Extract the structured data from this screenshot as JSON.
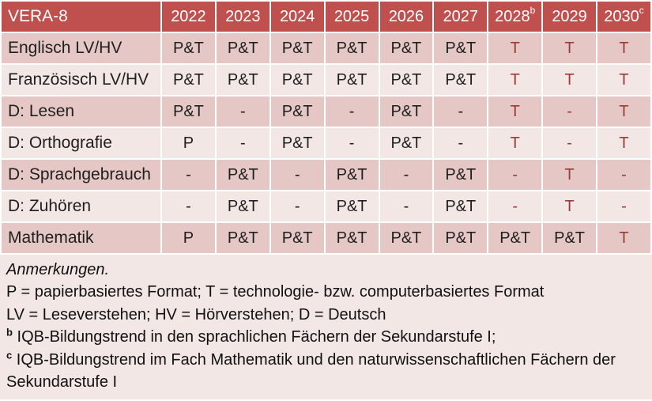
{
  "colors": {
    "header_bg": "#c0504d",
    "header_text": "#ffffff",
    "band_dark": "#e5c8c5",
    "band_light": "#f3e7e5",
    "notes_bg": "#f3e7e5",
    "cell_text": "#1f1f1f",
    "red_text": "#9c3a37"
  },
  "table": {
    "header": {
      "label": "VERA-8",
      "years": [
        {
          "text": "2022",
          "sup": ""
        },
        {
          "text": "2023",
          "sup": ""
        },
        {
          "text": "2024",
          "sup": ""
        },
        {
          "text": "2025",
          "sup": ""
        },
        {
          "text": "2026",
          "sup": ""
        },
        {
          "text": "2027",
          "sup": ""
        },
        {
          "text": "2028",
          "sup": "b"
        },
        {
          "text": "2029",
          "sup": ""
        },
        {
          "text": "2030",
          "sup": "c"
        }
      ]
    },
    "rows": [
      {
        "label": "Englisch LV/HV",
        "cells": [
          {
            "t": "P&T",
            "red": false
          },
          {
            "t": "P&T",
            "red": false
          },
          {
            "t": "P&T",
            "red": false
          },
          {
            "t": "P&T",
            "red": false
          },
          {
            "t": "P&T",
            "red": false
          },
          {
            "t": "P&T",
            "red": false
          },
          {
            "t": "T",
            "red": true
          },
          {
            "t": "T",
            "red": true
          },
          {
            "t": "T",
            "red": true
          }
        ]
      },
      {
        "label": "Französisch LV/HV",
        "cells": [
          {
            "t": "P&T",
            "red": false
          },
          {
            "t": "P&T",
            "red": false
          },
          {
            "t": "P&T",
            "red": false
          },
          {
            "t": "P&T",
            "red": false
          },
          {
            "t": "P&T",
            "red": false
          },
          {
            "t": "P&T",
            "red": false
          },
          {
            "t": "T",
            "red": true
          },
          {
            "t": "T",
            "red": true
          },
          {
            "t": "T",
            "red": true
          }
        ]
      },
      {
        "label": "D: Lesen",
        "cells": [
          {
            "t": "P&T",
            "red": false
          },
          {
            "t": "-",
            "red": false
          },
          {
            "t": "P&T",
            "red": false
          },
          {
            "t": "-",
            "red": false
          },
          {
            "t": "P&T",
            "red": false
          },
          {
            "t": "-",
            "red": false
          },
          {
            "t": "T",
            "red": true
          },
          {
            "t": "-",
            "red": true
          },
          {
            "t": "T",
            "red": true
          }
        ]
      },
      {
        "label": "D: Orthografie",
        "cells": [
          {
            "t": "P",
            "red": false
          },
          {
            "t": "-",
            "red": false
          },
          {
            "t": "P&T",
            "red": false
          },
          {
            "t": "-",
            "red": false
          },
          {
            "t": "P&T",
            "red": false
          },
          {
            "t": "-",
            "red": false
          },
          {
            "t": "T",
            "red": true
          },
          {
            "t": "-",
            "red": true
          },
          {
            "t": "T",
            "red": true
          }
        ]
      },
      {
        "label": "D: Sprachgebrauch",
        "cells": [
          {
            "t": "-",
            "red": false
          },
          {
            "t": "P&T",
            "red": false
          },
          {
            "t": "-",
            "red": false
          },
          {
            "t": "P&T",
            "red": false
          },
          {
            "t": "-",
            "red": false
          },
          {
            "t": "P&T",
            "red": false
          },
          {
            "t": "-",
            "red": true
          },
          {
            "t": "T",
            "red": true
          },
          {
            "t": "-",
            "red": true
          }
        ]
      },
      {
        "label": "D: Zuhören",
        "cells": [
          {
            "t": "-",
            "red": false
          },
          {
            "t": "P&T",
            "red": false
          },
          {
            "t": "-",
            "red": false
          },
          {
            "t": "P&T",
            "red": false
          },
          {
            "t": "-",
            "red": false
          },
          {
            "t": "P&T",
            "red": false
          },
          {
            "t": "-",
            "red": true
          },
          {
            "t": "T",
            "red": true
          },
          {
            "t": "-",
            "red": true
          }
        ]
      },
      {
        "label": "Mathematik",
        "cells": [
          {
            "t": "P",
            "red": false
          },
          {
            "t": "P&T",
            "red": false
          },
          {
            "t": "P&T",
            "red": false
          },
          {
            "t": "P&T",
            "red": false
          },
          {
            "t": "P&T",
            "red": false
          },
          {
            "t": "P&T",
            "red": false
          },
          {
            "t": "P&T",
            "red": false
          },
          {
            "t": "P&T",
            "red": false
          },
          {
            "t": "T",
            "red": true
          }
        ]
      }
    ]
  },
  "notes": {
    "title": "Anmerkungen.",
    "formats": "P = papierbasiertes Format; T = technologie- bzw. computerbasiertes Format",
    "abbreviations": "LV = Leseverstehen; HV = Hörverstehen; D = Deutsch",
    "note_b": {
      "sup": "b",
      "text": "IQB-Bildungstrend in den sprachlichen Fächern der Sekundarstufe I;"
    },
    "note_c": {
      "sup": "c",
      "text": "IQB-Bildungstrend im Fach Mathematik und den naturwissenschaftlichen Fächern der Sekundarstufe I"
    }
  }
}
